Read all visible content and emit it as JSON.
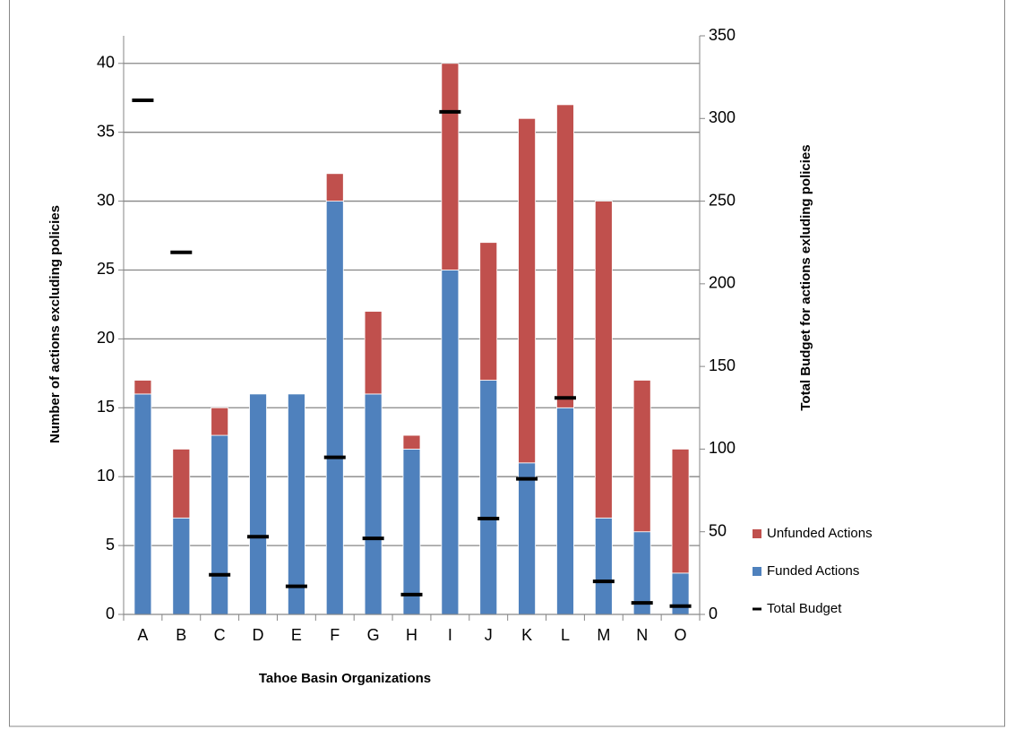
{
  "chart_data": {
    "type": "bar",
    "stacked": true,
    "xlabel": "Tahoe Basin Organizations",
    "ylabel": "Number of actions excluding policies",
    "y2label": "Total Budget for actions exluding policies",
    "categories": [
      "A",
      "B",
      "C",
      "D",
      "E",
      "F",
      "G",
      "H",
      "I",
      "J",
      "K",
      "L",
      "M",
      "N",
      "O"
    ],
    "series": [
      {
        "name": "Funded Actions",
        "color": "#4f81bd",
        "values": [
          16,
          7,
          13,
          16,
          16,
          30,
          16,
          12,
          25,
          17,
          11,
          15,
          7,
          6,
          3
        ]
      },
      {
        "name": "Unfunded Actions",
        "color": "#c0504d",
        "values": [
          1,
          5,
          2,
          0,
          0,
          2,
          6,
          1,
          15,
          10,
          25,
          22,
          23,
          11,
          9
        ]
      },
      {
        "name": "Total Budget",
        "color": "#000000",
        "axis": "y2",
        "values": [
          311,
          219,
          24,
          47,
          17,
          95,
          46,
          12,
          304,
          58,
          82,
          131,
          20,
          7,
          5
        ]
      }
    ],
    "ylim": [
      0,
      42
    ],
    "yticks": [
      0,
      5,
      10,
      15,
      20,
      25,
      30,
      35,
      40
    ],
    "y2lim": [
      0,
      350
    ],
    "y2ticks": [
      0,
      50,
      100,
      150,
      200,
      250,
      300,
      350
    ],
    "grid": true,
    "legend": "right"
  }
}
